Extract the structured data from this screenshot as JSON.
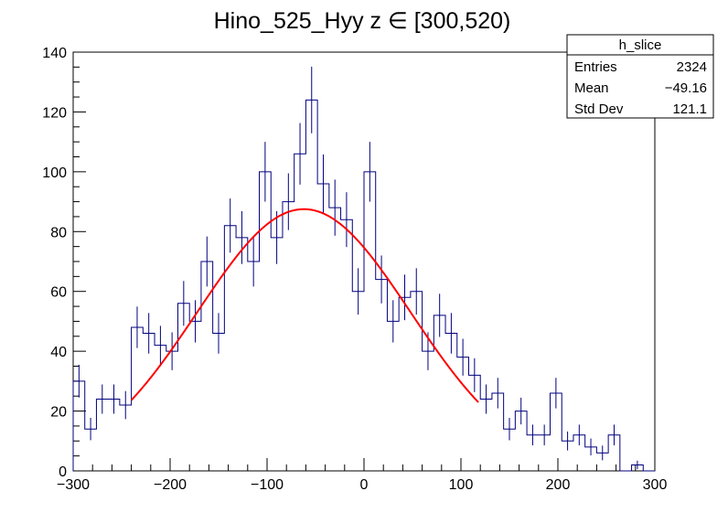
{
  "chart_data": {
    "type": "histogram",
    "title": "Hino_525_Hyy z  ∈ [300,520)",
    "xlabel": "",
    "ylabel": "",
    "xlim": [
      -300,
      300
    ],
    "ylim": [
      0,
      140
    ],
    "x_ticks": [
      -300,
      -200,
      -100,
      0,
      100,
      200,
      300
    ],
    "x_tick_labels": [
      "−300",
      "−200",
      "−100",
      "0",
      "100",
      "200",
      "300"
    ],
    "y_ticks": [
      0,
      20,
      40,
      60,
      80,
      100,
      120,
      140
    ],
    "y_tick_labels": [
      "0",
      "20",
      "40",
      "60",
      "80",
      "100",
      "120",
      "140"
    ],
    "bin_width": 12,
    "bin_edges_start": -300,
    "values": [
      30,
      14,
      24,
      24,
      22,
      48,
      46,
      42,
      40,
      56,
      50,
      70,
      46,
      82,
      78,
      70,
      100,
      78,
      90,
      106,
      124,
      96,
      88,
      84,
      60,
      100,
      64,
      50,
      58,
      60,
      40,
      52,
      46,
      38,
      32,
      24,
      26,
      14,
      20,
      12,
      12,
      26,
      10,
      12,
      8,
      6,
      12,
      0,
      2,
      0
    ],
    "histogram_color": "#00007f",
    "fit": {
      "type": "gaussian",
      "color": "#ff0000",
      "x_range": [
        -240,
        118
      ],
      "amplitude": 87.5,
      "mean": -62,
      "sigma": 110
    },
    "stats_box": {
      "name": "h_slice",
      "rows": [
        {
          "label": "Entries",
          "value": "2324"
        },
        {
          "label": "Mean",
          "value": "−49.16"
        },
        {
          "label": "Std Dev",
          "value": "121.1"
        }
      ]
    }
  }
}
